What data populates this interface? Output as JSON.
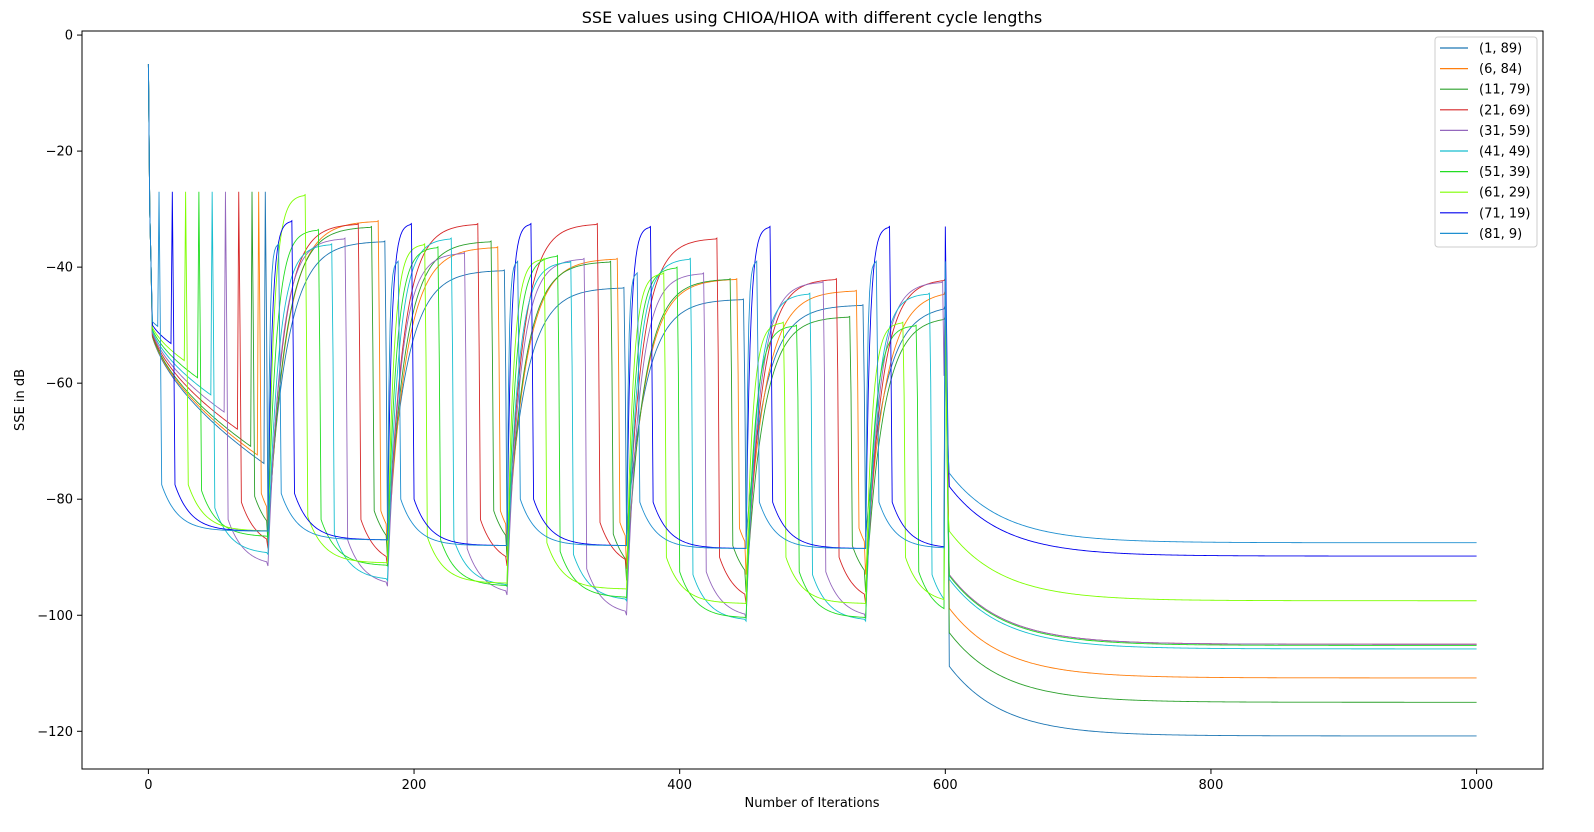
{
  "chart_data": {
    "type": "line",
    "title": "SSE values using CHIOA/HIOA with different cycle lengths",
    "xlabel": "Number of Iterations",
    "ylabel": "SSE in dB",
    "xlim": [
      -50,
      1050
    ],
    "ylim": [
      -126.5,
      0.7
    ],
    "xticks": [
      0,
      200,
      400,
      600,
      800,
      1000
    ],
    "yticks": [
      0,
      -20,
      -40,
      -60,
      -80,
      -100,
      -120
    ],
    "grid": false,
    "legend_position": "top-right",
    "total_iterations": 1000,
    "series": [
      {
        "name": "(1, 89)",
        "color": "#1f77b4",
        "peak_iter": 88,
        "valleys": [
          -84.5,
          -85.5,
          -86.0,
          -86.0,
          -86.5
        ],
        "peaks": [
          -35.5,
          -40.5,
          -43.5,
          -45.5,
          -46.5
        ],
        "final": -120.8
      },
      {
        "name": "(6, 84)",
        "color": "#ff7f0e",
        "peak_iter": 83,
        "valleys": [
          -87.0,
          -90.0,
          -90.0,
          -92.0,
          -93.0
        ],
        "peaks": [
          -32.0,
          -36.5,
          -38.5,
          -42.0,
          -44.0
        ],
        "final": -110.8
      },
      {
        "name": "(11, 79)",
        "color": "#2ca02c",
        "peak_iter": 78,
        "valleys": [
          -87.5,
          -90.0,
          -90.0,
          -94.0,
          -96.0
        ],
        "peaks": [
          -33.0,
          -35.5,
          -39.0,
          -42.0,
          -48.5
        ],
        "final": -115.0
      },
      {
        "name": "(21, 69)",
        "color": "#d62728",
        "peak_iter": 68,
        "valleys": [
          -88.5,
          -91.5,
          -91.5,
          -92.0,
          -98.0
        ],
        "peaks": [
          -32.5,
          -32.5,
          -32.5,
          -35.0,
          -42.0
        ],
        "final": -105.0
      },
      {
        "name": "(31, 59)",
        "color": "#9467bd",
        "peak_iter": 58,
        "valleys": [
          -91.5,
          -95.0,
          -96.5,
          -100.0,
          -100.5
        ],
        "peaks": [
          -35.0,
          -37.5,
          -38.5,
          -41.0,
          -42.5
        ],
        "final": -105.0
      },
      {
        "name": "(41, 49)",
        "color": "#17becf",
        "peak_iter": 48,
        "valleys": [
          -89.5,
          -94.0,
          -95.0,
          -97.5,
          -101.0
        ],
        "peaks": [
          -36.0,
          -35.0,
          -39.0,
          -38.5,
          -44.5
        ],
        "final": -105.8
      },
      {
        "name": "(51, 39)",
        "color": "#22dd22",
        "peak_iter": 38,
        "valleys": [
          -86.5,
          -91.5,
          -95.0,
          -97.0,
          -100.5
        ],
        "peaks": [
          -33.5,
          -36.5,
          -38.0,
          -40.0,
          -50.0
        ],
        "final": -105.2
      },
      {
        "name": "(61, 29)",
        "color": "#7fff00",
        "peak_iter": 28,
        "valleys": [
          -85.5,
          -91.0,
          -94.5,
          -95.5,
          -98.0
        ],
        "peaks": [
          -27.5,
          -36.0,
          -38.5,
          -41.0,
          -49.5
        ],
        "final": -97.5
      },
      {
        "name": "(71, 19)",
        "color": "#0000ee",
        "peak_iter": 18,
        "valleys": [
          -85.5,
          -87.0,
          -88.0,
          -88.0,
          -88.5
        ],
        "peaks": [
          -32.0,
          -32.5,
          -32.5,
          -33.0,
          -33.0
        ],
        "final": -89.8
      },
      {
        "name": "(81, 9)",
        "color": "#1f8fd0",
        "peak_iter": 8,
        "valleys": [
          -85.5,
          -87.0,
          -88.0,
          -88.0,
          -88.5
        ],
        "peaks": [
          -36.0,
          -39.0,
          -39.0,
          -41.0,
          -39.0
        ],
        "final": -87.5
      }
    ]
  }
}
